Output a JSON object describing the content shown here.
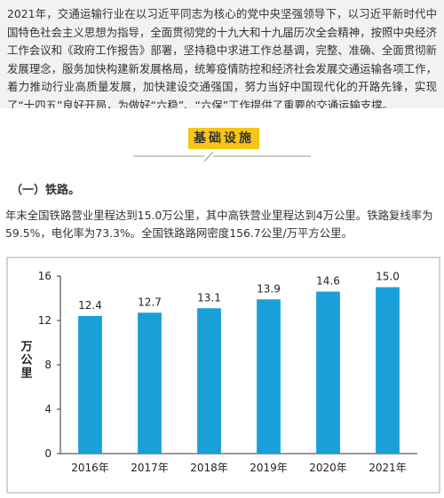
{
  "intro": "2021年，交通运输行业在以习近平同志为核心的党中央坚强领导下，以习近平新时代中国特色社会主义思想为指导，全面贯彻党的十九大和十九届历次全会精神，按照中央经济工作会议和《政府工作报告》部署，坚持稳中求进工作总基调，完整、准确、全面贯彻新发展理念，服务加快构建新发展格局，统筹疫情防控和经济社会发展交通运输各项工作，着力推动行业高质量发展，加快建设交通强国，努力当好中国现代化的开路先锋，实现了“十四五”良好开局，为做好“六稳”、“六保”工作提供了重要的交通运输支撑。",
  "section_title": "基础设施",
  "subtitle": "（一）铁路。",
  "paragraph": "年末全国铁路营业里程达到15.0万公里，其中高铁营业里程达到4万公里。铁路复线率为59.5%，电化率为73.3%。全国铁路路网密度156.7公里/万平方公里。",
  "chart_data": {
    "type": "bar",
    "y_label": "万公里",
    "categories": [
      "2016年",
      "2017年",
      "2018年",
      "2019年",
      "2020年",
      "2021年"
    ],
    "values": [
      12.4,
      12.7,
      13.1,
      13.9,
      14.6,
      15.0
    ],
    "value_labels": [
      "12.4",
      "12.7",
      "13.1",
      "13.9",
      "14.6",
      "15.0"
    ],
    "color": "#1aa0d8",
    "ylim": [
      0,
      16
    ],
    "yticks": [
      0,
      4,
      8,
      12,
      16
    ],
    "grid": false
  }
}
